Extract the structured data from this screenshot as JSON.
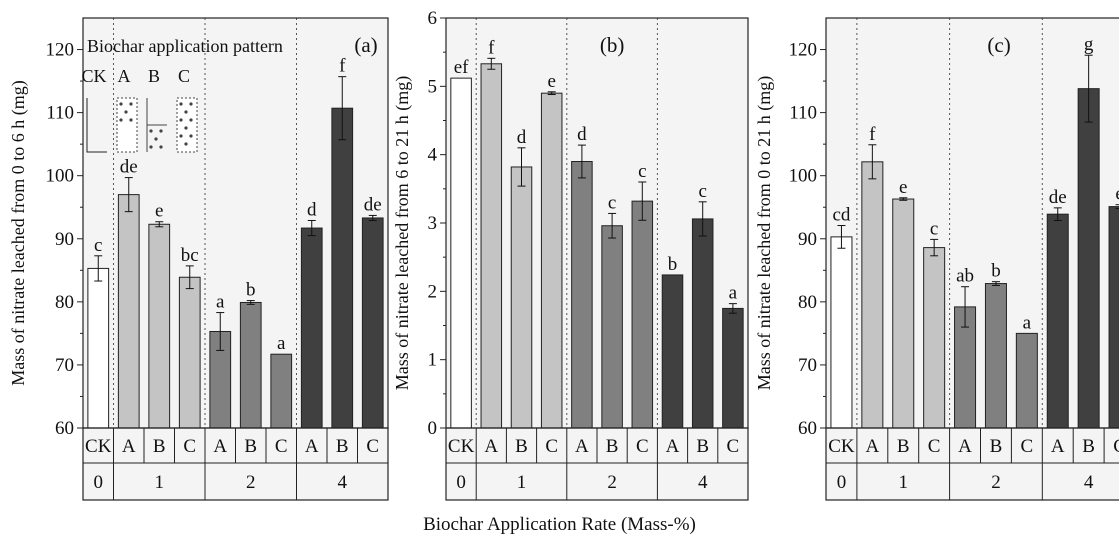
{
  "xlabel": "Biochar Application Rate (Mass-%)",
  "legend": {
    "title": "Biochar application pattern",
    "labels": [
      "CK",
      "A",
      "B",
      "C"
    ]
  },
  "colors": {
    "rate0": "#ffffff",
    "rate1": "#c4c4c4",
    "rate2": "#808080",
    "rate4": "#404040",
    "panel_bg": "#f4f4f4"
  },
  "chart_data": [
    {
      "type": "bar",
      "panel": "(a)",
      "ylabel": "Mass of nitrate  leached from 0 to 6 h (mg)",
      "ylim": [
        60,
        125
      ],
      "yticks": [
        60,
        70,
        80,
        90,
        100,
        110,
        120
      ],
      "categories": [
        "CK",
        "A",
        "B",
        "C",
        "A",
        "B",
        "C",
        "A",
        "B",
        "C"
      ],
      "groups": [
        {
          "label": "0",
          "count": 1
        },
        {
          "label": "1",
          "count": 3
        },
        {
          "label": "2",
          "count": 3
        },
        {
          "label": "4",
          "count": 3
        }
      ],
      "values": [
        85.3,
        97.0,
        92.3,
        83.9,
        75.3,
        79.9,
        71.7,
        91.7,
        110.7,
        93.3
      ],
      "errors": [
        2.0,
        2.7,
        0.4,
        1.8,
        3.0,
        0.3,
        0.0,
        1.2,
        5.0,
        0.4
      ],
      "letters": [
        "c",
        "de",
        "e",
        "bc",
        "a",
        "b",
        "a",
        "d",
        "f",
        "de"
      ]
    },
    {
      "type": "bar",
      "panel": "(b)",
      "ylabel": "Mass of nitrate leached from 6 to 21 h (mg)",
      "ylim": [
        0,
        6
      ],
      "yticks": [
        0,
        1,
        2,
        3,
        4,
        5,
        6
      ],
      "categories": [
        "CK",
        "A",
        "B",
        "C",
        "A",
        "B",
        "C",
        "A",
        "B",
        "C"
      ],
      "groups": [
        {
          "label": "0",
          "count": 1
        },
        {
          "label": "1",
          "count": 3
        },
        {
          "label": "2",
          "count": 3
        },
        {
          "label": "4",
          "count": 3
        }
      ],
      "values": [
        5.12,
        5.33,
        3.82,
        4.9,
        3.9,
        2.96,
        3.32,
        2.24,
        3.06,
        1.75
      ],
      "errors": [
        0.0,
        0.08,
        0.28,
        0.02,
        0.24,
        0.18,
        0.28,
        0.0,
        0.25,
        0.07
      ],
      "letters": [
        "ef",
        "f",
        "d",
        "e",
        "d",
        "c",
        "c",
        "b",
        "c",
        "a"
      ]
    },
    {
      "type": "bar",
      "panel": "(c)",
      "ylabel": "Mass of nitrate leached from 0 to 21 h (mg)",
      "ylim": [
        60,
        125
      ],
      "yticks": [
        60,
        70,
        80,
        90,
        100,
        110,
        120
      ],
      "categories": [
        "CK",
        "A",
        "B",
        "C",
        "A",
        "B",
        "C",
        "A",
        "B",
        "C"
      ],
      "groups": [
        {
          "label": "0",
          "count": 1
        },
        {
          "label": "1",
          "count": 3
        },
        {
          "label": "2",
          "count": 3
        },
        {
          "label": "4",
          "count": 3
        }
      ],
      "values": [
        90.3,
        102.2,
        96.3,
        88.6,
        79.2,
        82.9,
        75.0,
        93.9,
        113.8,
        95.1
      ],
      "errors": [
        1.8,
        2.7,
        0.2,
        1.3,
        3.2,
        0.3,
        0.0,
        1.0,
        5.3,
        0.3
      ],
      "letters": [
        "cd",
        "f",
        "e",
        "c",
        "ab",
        "b",
        "a",
        "de",
        "g",
        "e"
      ]
    }
  ]
}
